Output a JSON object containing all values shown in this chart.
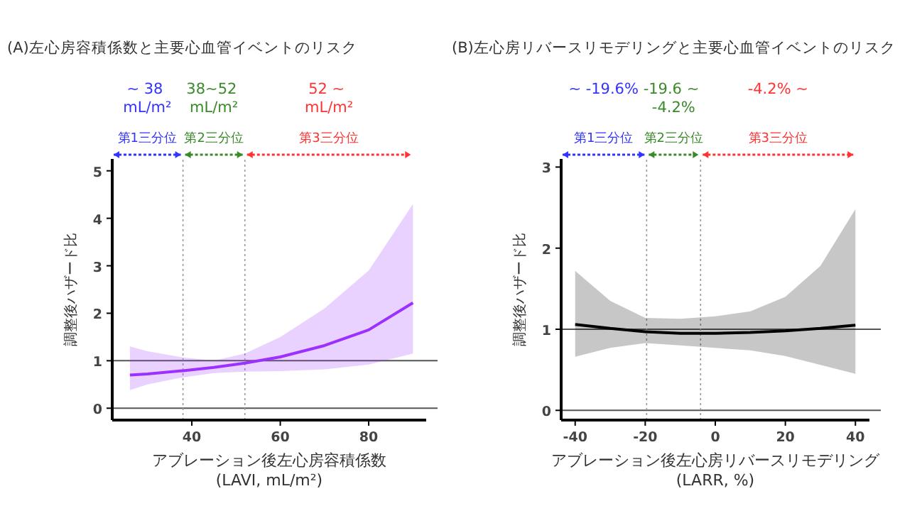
{
  "chart_data": [
    {
      "type": "line",
      "title": "(A)左心房容積係数と主要心血管イベントのリスク",
      "xlabel": "アブレーション後左心房容積係数\n(LAVI, mL/m²)",
      "ylabel": "調整後ハザード比",
      "xlim": [
        22,
        93
      ],
      "ylim": [
        -0.25,
        5.25
      ],
      "xticks": [
        40,
        60,
        80
      ],
      "yticks": [
        0,
        1,
        2,
        3,
        4,
        5
      ],
      "grid": false,
      "series": [
        {
          "color": "#9b30ff",
          "x": [
            26,
            30,
            38,
            45,
            52,
            60,
            70,
            80,
            90
          ],
          "values": [
            0.7,
            0.72,
            0.79,
            0.86,
            0.95,
            1.08,
            1.32,
            1.65,
            2.22
          ],
          "lower": [
            0.38,
            0.5,
            0.65,
            0.74,
            0.77,
            0.78,
            0.82,
            0.92,
            1.15
          ],
          "upper": [
            1.3,
            1.2,
            1.07,
            1.0,
            1.15,
            1.5,
            2.1,
            2.9,
            4.3
          ]
        }
      ],
      "ref_lines": [
        {
          "axis": "y",
          "value": 1,
          "color": "#555555",
          "line_style": "solid"
        },
        {
          "axis": "y",
          "value": 0,
          "color": "#555555",
          "line_style": "solid"
        },
        {
          "axis": "x",
          "value": 38,
          "color": "#999999",
          "line_style": "dotted"
        },
        {
          "axis": "x",
          "value": 52,
          "color": "#999999",
          "line_style": "dotted"
        }
      ],
      "annotations": [
        "~ 38\nmL/m²",
        "38~52\nmL/m²",
        "52 ~\nmL/m²",
        "第1三分位",
        "第2三分位",
        "第3三分位"
      ]
    },
    {
      "type": "line",
      "title": "(B)左心房リバースリモデリングと主要心血管イベントのリスク",
      "xlabel": "アブレーション後左心房リバースリモデリング\n(LARR, %)",
      "ylabel": "調整後ハザード比",
      "xlim": [
        -44,
        44
      ],
      "ylim": [
        -0.12,
        3.1
      ],
      "xticks": [
        -40,
        -20,
        0,
        20,
        40
      ],
      "yticks": [
        0,
        1,
        2,
        3
      ],
      "grid": false,
      "series": [
        {
          "color": "#000000",
          "x": [
            -40,
            -30,
            -20,
            -10,
            0,
            10,
            20,
            30,
            40
          ],
          "values": [
            1.06,
            1.01,
            0.97,
            0.95,
            0.95,
            0.96,
            0.98,
            1.01,
            1.05
          ],
          "lower": [
            0.66,
            0.77,
            0.83,
            0.8,
            0.77,
            0.74,
            0.67,
            0.56,
            0.45
          ],
          "upper": [
            1.72,
            1.35,
            1.14,
            1.13,
            1.16,
            1.22,
            1.4,
            1.78,
            2.48
          ]
        }
      ],
      "ref_lines": [
        {
          "axis": "y",
          "value": 1,
          "color": "#555555",
          "line_style": "solid"
        },
        {
          "axis": "y",
          "value": 0,
          "color": "#555555",
          "line_style": "solid"
        },
        {
          "axis": "x",
          "value": -19.6,
          "color": "#999999",
          "line_style": "dotted"
        },
        {
          "axis": "x",
          "value": -4.2,
          "color": "#999999",
          "line_style": "dotted"
        }
      ],
      "annotations": [
        "~ -19.6%",
        "-19.6 ~\n-4.2%",
        "-4.2% ~",
        "第1三分位",
        "第2三分位",
        "第3三分位"
      ]
    }
  ]
}
